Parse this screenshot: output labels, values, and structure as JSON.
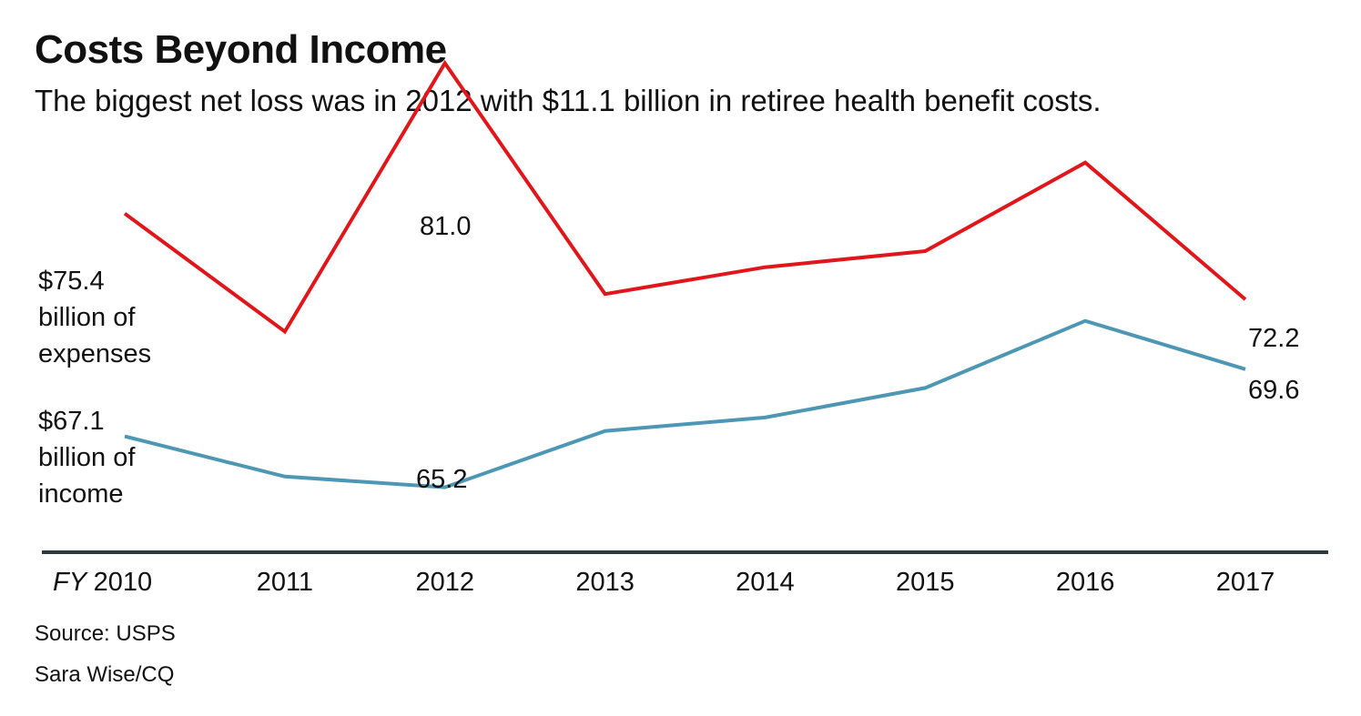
{
  "title": "Costs Beyond Income",
  "subtitle": "The biggest net loss was in 2012 with $11.1 billion in retiree health benefit costs.",
  "source": "Source: USPS",
  "credit": "Sara Wise/CQ",
  "colors": {
    "expenses": "#e0161b",
    "income": "#4d97b4",
    "axis": "#2b3a40"
  },
  "chart_data": {
    "type": "line",
    "x_prefix": "FY",
    "categories": [
      "2010",
      "2011",
      "2012",
      "2013",
      "2014",
      "2015",
      "2016",
      "2017"
    ],
    "ylim": [
      62,
      82
    ],
    "grid": false,
    "series": [
      {
        "key": "expenses",
        "values": [
          75.4,
          71.0,
          81.0,
          72.4,
          73.4,
          74.0,
          77.3,
          72.2
        ]
      },
      {
        "key": "income",
        "values": [
          67.1,
          65.6,
          65.2,
          67.3,
          67.8,
          68.9,
          71.4,
          69.6
        ]
      }
    ],
    "annotations": {
      "expenses_start": [
        "$75.4",
        "billion of",
        "expenses"
      ],
      "income_start": [
        "$67.1",
        "billion of",
        "income"
      ],
      "expenses_peak": "81.0",
      "income_low": "65.2",
      "expenses_end": "72.2",
      "income_end": "69.6"
    }
  }
}
